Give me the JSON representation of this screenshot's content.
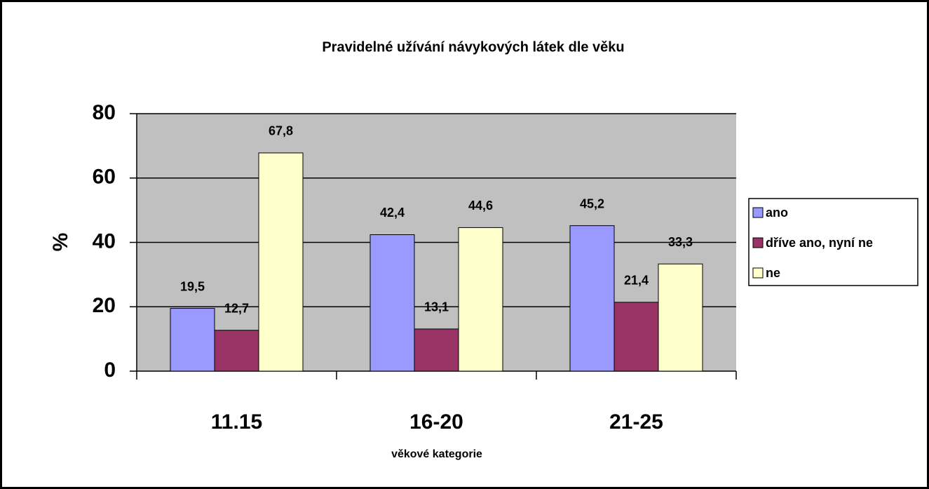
{
  "chart_data": {
    "type": "bar",
    "title": "Pravidelné užívání návykových látek dle věku",
    "y_label": "%",
    "x_label": "věkové kategorie",
    "categories": [
      "11.15",
      "16-20",
      "21-25"
    ],
    "series": [
      {
        "name": "ano",
        "color": "#9999ff",
        "values": [
          19.5,
          42.4,
          45.2
        ],
        "value_labels": [
          "19,5",
          "42,4",
          "45,2"
        ]
      },
      {
        "name": "dříve ano, nyní ne",
        "color": "#993366",
        "values": [
          12.7,
          13.1,
          21.4
        ],
        "value_labels": [
          "12,7",
          "13,1",
          "21,4"
        ]
      },
      {
        "name": "ne",
        "color": "#ffffcc",
        "values": [
          67.8,
          44.6,
          33.3
        ],
        "value_labels": [
          "67,8",
          "44,6",
          "33,3"
        ]
      }
    ],
    "ylim": [
      0,
      80
    ],
    "yticks": [
      0,
      20,
      40,
      60,
      80
    ],
    "grid": true,
    "legend": "right"
  }
}
